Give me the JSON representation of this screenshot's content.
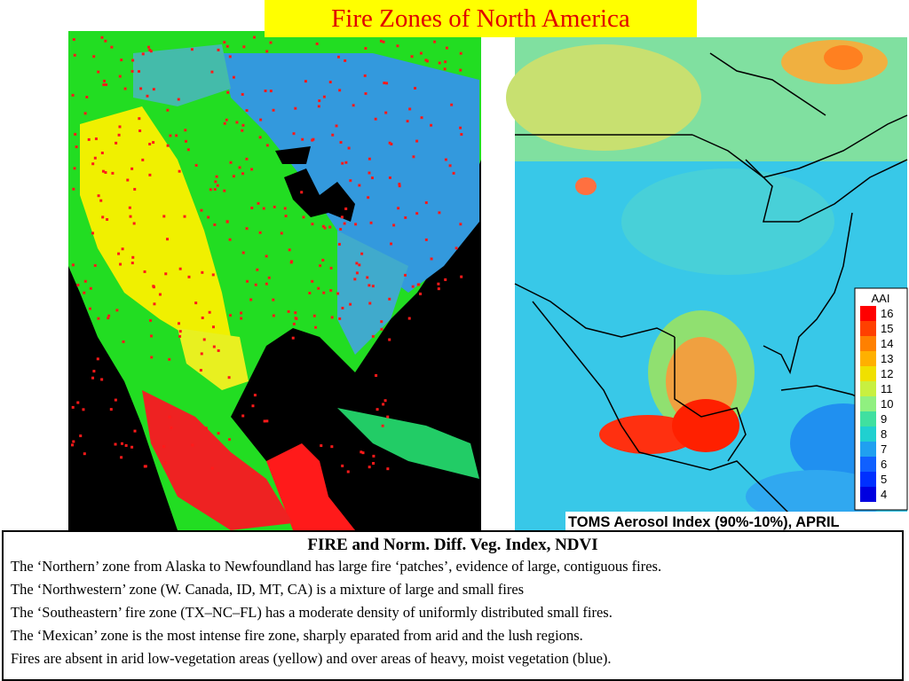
{
  "title": "Fire Zones of  North America",
  "right_map": {
    "legend_title": "AAI",
    "legend": [
      {
        "label": 16,
        "color": "#ff0000"
      },
      {
        "label": 15,
        "color": "#ff4000"
      },
      {
        "label": 14,
        "color": "#ff8000"
      },
      {
        "label": 13,
        "color": "#ffb000"
      },
      {
        "label": 12,
        "color": "#f0e000"
      },
      {
        "label": 11,
        "color": "#c8f040"
      },
      {
        "label": 10,
        "color": "#90f080"
      },
      {
        "label": 9,
        "color": "#40e0a0"
      },
      {
        "label": 8,
        "color": "#20d0d0"
      },
      {
        "label": 7,
        "color": "#20a0f0"
      },
      {
        "label": 6,
        "color": "#1060ff"
      },
      {
        "label": 5,
        "color": "#0030ff"
      },
      {
        "label": 4,
        "color": "#0000e0"
      }
    ],
    "caption": "TOMS Aerosol Index (90%-10%), APRIL"
  },
  "text_box": {
    "heading": "FIRE and Norm. Diff. Veg. Index, NDVI",
    "lines": [
      "The ‘Northern’ zone from Alaska to Newfoundland has large fire ‘patches’, evidence of large, contiguous fires.",
      "The ‘Northwestern’ zone (W. Canada, ID, MT, CA) is a mixture of large and small fires",
      "The ‘Southeastern’ fire zone (TX–NC–FL) has a moderate density of uniformly distributed small fires.",
      "The ‘Mexican’ zone is the most intense fire zone, sharply eparated from arid and the lush regions.",
      "Fires are absent in arid low-vegetation areas (yellow) and over areas of heavy, moist vegetation (blue)."
    ]
  }
}
